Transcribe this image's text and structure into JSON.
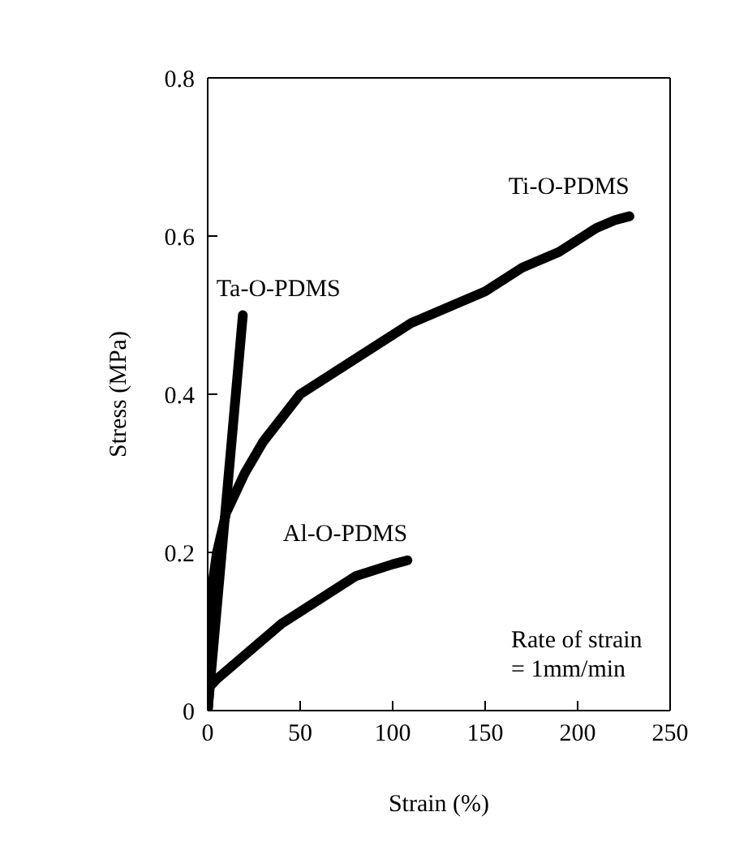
{
  "chart_data": {
    "type": "line",
    "xlabel": "Strain (%)",
    "ylabel": "Stress (MPa)",
    "xlim": [
      0,
      250
    ],
    "ylim": [
      0,
      0.8
    ],
    "xticks": [
      0,
      50,
      100,
      150,
      200,
      250
    ],
    "yticks": [
      0,
      0.2,
      0.4,
      0.6,
      0.8
    ],
    "marker": "none",
    "line_style": "solid",
    "series": [
      {
        "name": "Ta-O-PDMS",
        "color": "#000000",
        "x": [
          0,
          19
        ],
        "values": [
          0,
          0.5
        ]
      },
      {
        "name": "Ti-O-PDMS",
        "color": "#000000",
        "x": [
          0,
          2,
          5,
          10,
          20,
          30,
          50,
          70,
          90,
          110,
          130,
          150,
          170,
          190,
          210,
          220,
          228
        ],
        "values": [
          0,
          0.15,
          0.2,
          0.25,
          0.3,
          0.34,
          0.4,
          0.43,
          0.46,
          0.49,
          0.51,
          0.53,
          0.56,
          0.58,
          0.61,
          0.62,
          0.625
        ]
      },
      {
        "name": "Al-O-PDMS",
        "color": "#000000",
        "x": [
          0,
          1,
          5,
          20,
          40,
          60,
          80,
          100,
          108
        ],
        "values": [
          0,
          0.03,
          0.04,
          0.07,
          0.11,
          0.14,
          0.17,
          0.185,
          0.19
        ]
      }
    ],
    "annotations": [
      "Rate of strain",
      "= 1mm/min"
    ]
  }
}
